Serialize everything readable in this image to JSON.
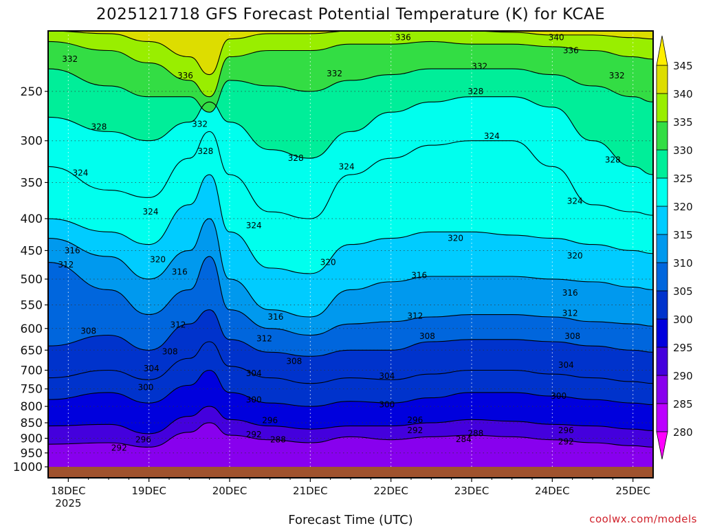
{
  "title": "2025121718 GFS Forecast Potential Temperature (K) for KCAE",
  "xlabel": "Forecast Time (UTC)",
  "credit": "coolwx.com/models",
  "colors": {
    "surface": "#a0522d",
    "bands": [
      "#ff00ff",
      "#bb00ff",
      "#8800ee",
      "#4400dd",
      "#0000dd",
      "#0033cc",
      "#0066dd",
      "#0099ee",
      "#00ccff",
      "#00ffee",
      "#00ee99",
      "#33dd44",
      "#99ee00",
      "#dddd00",
      "#ffee00"
    ],
    "band_levels": [
      280,
      285,
      290,
      295,
      300,
      305,
      310,
      315,
      320,
      325,
      330,
      335,
      340,
      345
    ]
  },
  "chart_data": {
    "type": "heatmap",
    "title": "2025121718 GFS Forecast Potential Temperature (K) for KCAE",
    "xlabel": "Forecast Time (UTC)",
    "ylabel": "",
    "y_axis": "pressure (hPa), inverted",
    "ylim": [
      1000,
      200
    ],
    "yticks": [
      250,
      300,
      350,
      400,
      450,
      500,
      550,
      600,
      650,
      700,
      750,
      800,
      850,
      900,
      950,
      1000
    ],
    "xticks": [
      "18DEC",
      "19DEC",
      "20DEC",
      "21DEC",
      "22DEC",
      "23DEC",
      "24DEC",
      "25DEC"
    ],
    "xtick_sublabel": "2025",
    "xlim_days": [
      17.75,
      25.25
    ],
    "colorbar": {
      "levels": [
        280,
        285,
        290,
        295,
        300,
        305,
        310,
        315,
        320,
        325,
        330,
        335,
        340,
        345
      ]
    },
    "contour_interval": 2,
    "grid": true,
    "isentropes": [
      {
        "theta": 292,
        "x": [
          17.75,
          18.5,
          19.0,
          19.5,
          19.75,
          20.0,
          20.5,
          21.0,
          21.5,
          22.0,
          22.5,
          23.0,
          23.5,
          24.0,
          24.5,
          25.0,
          25.25
        ],
        "p": [
          920,
          915,
          930,
          880,
          850,
          890,
          905,
          915,
          895,
          905,
          895,
          890,
          895,
          905,
          915,
          925,
          930
        ]
      },
      {
        "theta": 296,
        "x": [
          17.75,
          18.5,
          19.0,
          19.5,
          19.75,
          20.0,
          20.5,
          21.0,
          21.5,
          22.0,
          22.5,
          23.0,
          23.5,
          24.0,
          24.5,
          25.0,
          25.25
        ],
        "p": [
          860,
          855,
          885,
          830,
          800,
          840,
          860,
          870,
          860,
          860,
          850,
          840,
          845,
          855,
          860,
          870,
          875
        ]
      },
      {
        "theta": 300,
        "x": [
          17.75,
          18.5,
          19.0,
          19.5,
          19.75,
          20.0,
          20.5,
          21.0,
          21.5,
          22.0,
          22.5,
          23.0,
          23.5,
          24.0,
          24.5,
          25.0,
          25.25
        ],
        "p": [
          780,
          760,
          790,
          740,
          700,
          760,
          790,
          800,
          785,
          790,
          775,
          760,
          760,
          770,
          780,
          790,
          795
        ]
      },
      {
        "theta": 304,
        "x": [
          17.75,
          18.5,
          19.0,
          19.5,
          19.75,
          20.0,
          20.5,
          21.0,
          21.5,
          22.0,
          22.5,
          23.0,
          23.5,
          24.0,
          24.5,
          25.0,
          25.25
        ],
        "p": [
          720,
          700,
          725,
          670,
          630,
          690,
          720,
          735,
          720,
          725,
          710,
          700,
          700,
          710,
          720,
          730,
          735
        ]
      },
      {
        "theta": 308,
        "x": [
          17.75,
          18.5,
          19.0,
          19.5,
          19.75,
          20.0,
          20.5,
          21.0,
          21.5,
          22.0,
          22.5,
          23.0,
          23.5,
          24.0,
          24.5,
          25.0,
          25.25
        ],
        "p": [
          640,
          615,
          650,
          590,
          560,
          625,
          655,
          665,
          650,
          650,
          630,
          625,
          625,
          630,
          640,
          650,
          655
        ]
      },
      {
        "theta": 312,
        "x": [
          17.75,
          18.5,
          19.0,
          19.5,
          19.75,
          20.0,
          20.5,
          21.0,
          21.5,
          22.0,
          22.5,
          23.0,
          23.5,
          24.0,
          24.5,
          25.0,
          25.25
        ],
        "p": [
          470,
          520,
          570,
          520,
          460,
          560,
          600,
          615,
          590,
          585,
          575,
          570,
          570,
          575,
          585,
          590,
          595
        ]
      },
      {
        "theta": 316,
        "x": [
          17.75,
          18.5,
          19.0,
          19.5,
          19.75,
          20.0,
          20.5,
          21.0,
          21.5,
          22.0,
          22.5,
          23.0,
          23.5,
          24.0,
          24.5,
          25.0,
          25.25
        ],
        "p": [
          430,
          460,
          500,
          450,
          400,
          500,
          560,
          575,
          520,
          505,
          495,
          495,
          495,
          500,
          505,
          515,
          520
        ]
      },
      {
        "theta": 320,
        "x": [
          17.75,
          18.5,
          19.0,
          19.5,
          19.75,
          20.0,
          20.5,
          21.0,
          21.5,
          22.0,
          22.5,
          23.0,
          23.5,
          24.0,
          24.5,
          25.0,
          25.25
        ],
        "p": [
          400,
          420,
          440,
          380,
          340,
          420,
          480,
          490,
          440,
          430,
          420,
          420,
          425,
          430,
          440,
          450,
          455
        ]
      },
      {
        "theta": 324,
        "x": [
          17.75,
          18.5,
          19.0,
          19.5,
          19.75,
          20.0,
          20.5,
          21.0,
          21.5,
          22.0,
          22.5,
          23.0,
          23.5,
          24.0,
          24.5,
          25.0,
          25.25
        ],
        "p": [
          330,
          360,
          370,
          320,
          290,
          340,
          390,
          400,
          340,
          320,
          305,
          300,
          300,
          330,
          380,
          390,
          395
        ]
      },
      {
        "theta": 328,
        "x": [
          17.75,
          18.5,
          19.0,
          19.5,
          19.75,
          20.0,
          20.5,
          21.0,
          21.5,
          22.0,
          22.5,
          23.0,
          23.5,
          24.0,
          24.5,
          25.0,
          25.25
        ],
        "p": [
          275,
          290,
          300,
          280,
          260,
          280,
          310,
          320,
          290,
          270,
          260,
          255,
          255,
          265,
          300,
          330,
          340
        ]
      },
      {
        "theta": 332,
        "x": [
          17.75,
          18.5,
          19.0,
          19.5,
          19.75,
          20.0,
          20.5,
          21.0,
          21.5,
          22.0,
          22.5,
          23.0,
          23.5,
          24.0,
          24.5,
          25.0,
          25.25
        ],
        "p": [
          230,
          245,
          255,
          255,
          270,
          240,
          245,
          250,
          240,
          235,
          230,
          230,
          230,
          235,
          245,
          255,
          260
        ]
      },
      {
        "theta": 336,
        "x": [
          17.75,
          18.5,
          19.0,
          19.5,
          19.75,
          20.0,
          20.5,
          21.0,
          21.5,
          22.0,
          22.5,
          23.0,
          23.5,
          24.0,
          24.5,
          25.0,
          25.25
        ],
        "p": [
          208,
          215,
          225,
          240,
          255,
          220,
          215,
          215,
          210,
          210,
          208,
          210,
          210,
          212,
          215,
          220,
          222
        ]
      },
      {
        "theta": 340,
        "x": [
          17.75,
          18.5,
          19.0,
          19.5,
          19.75,
          20.0,
          20.5,
          21.0,
          21.5,
          22.0,
          22.5,
          23.0,
          23.5,
          24.0,
          24.5,
          25.0,
          25.25
        ],
        "p": [
          200,
          202,
          208,
          220,
          235,
          206,
          202,
          202,
          200,
          200,
          200,
          200,
          201,
          203,
          203,
          205,
          206
        ]
      }
    ],
    "labels": [
      {
        "text": "332",
        "x": 18.02,
        "p": 222
      },
      {
        "text": "336",
        "x": 19.45,
        "p": 236
      },
      {
        "text": "332",
        "x": 21.3,
        "p": 234
      },
      {
        "text": "336",
        "x": 22.15,
        "p": 205
      },
      {
        "text": "340",
        "x": 24.05,
        "p": 205
      },
      {
        "text": "336",
        "x": 24.23,
        "p": 215
      },
      {
        "text": "332",
        "x": 23.1,
        "p": 228
      },
      {
        "text": "332",
        "x": 24.8,
        "p": 236
      },
      {
        "text": "328",
        "x": 18.38,
        "p": 285
      },
      {
        "text": "332",
        "x": 19.63,
        "p": 282
      },
      {
        "text": "328",
        "x": 19.7,
        "p": 312
      },
      {
        "text": "328",
        "x": 20.82,
        "p": 320
      },
      {
        "text": "328",
        "x": 23.05,
        "p": 250
      },
      {
        "text": "328",
        "x": 24.75,
        "p": 322
      },
      {
        "text": "324",
        "x": 18.15,
        "p": 338
      },
      {
        "text": "324",
        "x": 21.45,
        "p": 330
      },
      {
        "text": "324",
        "x": 23.25,
        "p": 295
      },
      {
        "text": "324",
        "x": 24.28,
        "p": 375
      },
      {
        "text": "324",
        "x": 19.02,
        "p": 390
      },
      {
        "text": "324",
        "x": 20.3,
        "p": 410
      },
      {
        "text": "320",
        "x": 22.8,
        "p": 430
      },
      {
        "text": "320",
        "x": 24.28,
        "p": 459
      },
      {
        "text": "320",
        "x": 21.22,
        "p": 470
      },
      {
        "text": "320",
        "x": 19.11,
        "p": 465
      },
      {
        "text": "316",
        "x": 18.05,
        "p": 450
      },
      {
        "text": "316",
        "x": 19.38,
        "p": 487
      },
      {
        "text": "316",
        "x": 22.35,
        "p": 493
      },
      {
        "text": "316",
        "x": 24.22,
        "p": 526
      },
      {
        "text": "316",
        "x": 20.57,
        "p": 575
      },
      {
        "text": "312",
        "x": 17.97,
        "p": 474
      },
      {
        "text": "312",
        "x": 19.36,
        "p": 592
      },
      {
        "text": "312",
        "x": 20.43,
        "p": 623
      },
      {
        "text": "312",
        "x": 22.3,
        "p": 573
      },
      {
        "text": "312",
        "x": 24.22,
        "p": 567
      },
      {
        "text": "308",
        "x": 18.25,
        "p": 606
      },
      {
        "text": "308",
        "x": 19.26,
        "p": 654
      },
      {
        "text": "308",
        "x": 20.8,
        "p": 677
      },
      {
        "text": "308",
        "x": 22.45,
        "p": 617
      },
      {
        "text": "308",
        "x": 24.25,
        "p": 617
      },
      {
        "text": "304",
        "x": 19.03,
        "p": 696
      },
      {
        "text": "304",
        "x": 20.3,
        "p": 708
      },
      {
        "text": "304",
        "x": 21.95,
        "p": 715
      },
      {
        "text": "304",
        "x": 24.17,
        "p": 687
      },
      {
        "text": "300",
        "x": 18.96,
        "p": 746
      },
      {
        "text": "300",
        "x": 20.3,
        "p": 781
      },
      {
        "text": "300",
        "x": 21.95,
        "p": 795
      },
      {
        "text": "300",
        "x": 24.08,
        "p": 770
      },
      {
        "text": "296",
        "x": 20.5,
        "p": 842
      },
      {
        "text": "296",
        "x": 22.3,
        "p": 841
      },
      {
        "text": "296",
        "x": 24.17,
        "p": 874
      },
      {
        "text": "292",
        "x": 20.3,
        "p": 888
      },
      {
        "text": "292",
        "x": 22.3,
        "p": 874
      },
      {
        "text": "292",
        "x": 24.17,
        "p": 911
      },
      {
        "text": "292",
        "x": 18.63,
        "p": 933
      },
      {
        "text": "296",
        "x": 18.93,
        "p": 905
      },
      {
        "text": "288",
        "x": 20.6,
        "p": 905
      },
      {
        "text": "284",
        "x": 22.9,
        "p": 904
      },
      {
        "text": "288",
        "x": 23.05,
        "p": 884
      }
    ]
  }
}
